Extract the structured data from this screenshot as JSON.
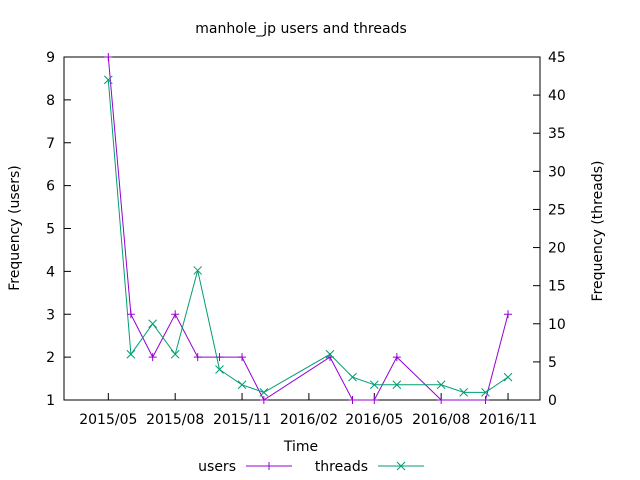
{
  "chart_data": {
    "type": "line",
    "title": "manhole_jp users and threads",
    "xlabel": "Time",
    "ylabel": "Frequency (users)",
    "y2label": "Frequency (threads)",
    "xlim": [
      "2015-03-01",
      "2016-12-15"
    ],
    "ylim": [
      1,
      9
    ],
    "y2lim": [
      0,
      45
    ],
    "x_ticks": [
      "2015/05",
      "2015/08",
      "2015/11",
      "2016/02",
      "2016/05",
      "2016/08",
      "2016/11"
    ],
    "y_ticks": [
      1,
      2,
      3,
      4,
      5,
      6,
      7,
      8,
      9
    ],
    "y2_ticks": [
      0,
      5,
      10,
      15,
      20,
      25,
      30,
      35,
      40,
      45
    ],
    "legend_position": "bottom-center",
    "grid": false,
    "series": [
      {
        "name": "users",
        "axis": "y",
        "color": "#9400d3",
        "marker": "plus",
        "points": [
          [
            "2015-05-01",
            9
          ],
          [
            "2015-06-01",
            3
          ],
          [
            "2015-07-01",
            2
          ],
          [
            "2015-08-01",
            3
          ],
          [
            "2015-09-01",
            2
          ],
          [
            "2015-10-01",
            2
          ],
          [
            "2015-11-01",
            2
          ],
          [
            "2015-12-01",
            1
          ],
          [
            "2016-03-01",
            2
          ],
          [
            "2016-04-01",
            1
          ],
          [
            "2016-05-01",
            1
          ],
          [
            "2016-06-01",
            2
          ],
          [
            "2016-08-01",
            1
          ],
          [
            "2016-10-01",
            1
          ],
          [
            "2016-11-01",
            3
          ]
        ]
      },
      {
        "name": "threads",
        "axis": "y2",
        "color": "#009e73",
        "marker": "cross",
        "points": [
          [
            "2015-05-01",
            42
          ],
          [
            "2015-06-01",
            6
          ],
          [
            "2015-07-01",
            10
          ],
          [
            "2015-08-01",
            6
          ],
          [
            "2015-09-01",
            17
          ],
          [
            "2015-10-01",
            4
          ],
          [
            "2015-11-01",
            2
          ],
          [
            "2015-12-01",
            1
          ],
          [
            "2016-03-01",
            6
          ],
          [
            "2016-04-01",
            3
          ],
          [
            "2016-05-01",
            2
          ],
          [
            "2016-06-01",
            2
          ],
          [
            "2016-08-01",
            2
          ],
          [
            "2016-09-01",
            1
          ],
          [
            "2016-10-01",
            1
          ],
          [
            "2016-11-01",
            3
          ]
        ]
      }
    ]
  }
}
